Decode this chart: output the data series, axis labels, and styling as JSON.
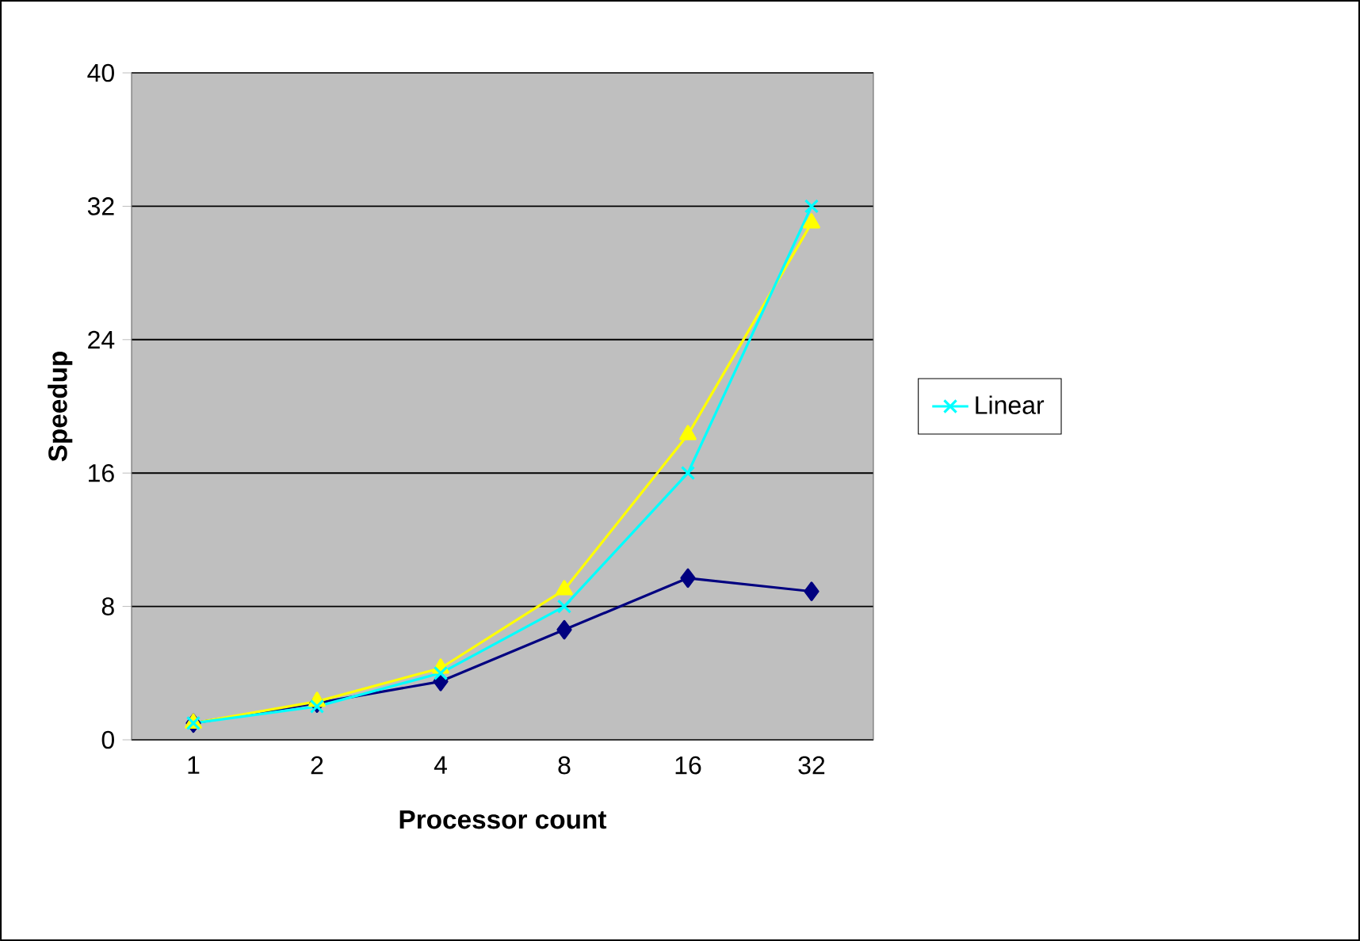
{
  "chart_data": {
    "type": "line",
    "xlabel": "Processor count",
    "ylabel": "Speedup",
    "categories": [
      "1",
      "2",
      "4",
      "8",
      "16",
      "32"
    ],
    "ylim": [
      0,
      40
    ],
    "yticks": [
      0,
      8,
      16,
      24,
      32,
      40
    ],
    "grid": "y",
    "legend": "right",
    "series": [
      {
        "color": "#000080",
        "marker": "diamond",
        "values": [
          1.0,
          2.2,
          3.5,
          6.6,
          9.7,
          8.9
        ]
      },
      {
        "color": "#ffff00",
        "marker": "triangle",
        "values": [
          1.0,
          2.3,
          4.3,
          9.0,
          18.3,
          31.0
        ]
      },
      {
        "name": "Linear",
        "color": "#00ffff",
        "marker": "cross",
        "values": [
          1,
          2,
          4,
          8,
          16,
          32
        ]
      }
    ]
  }
}
